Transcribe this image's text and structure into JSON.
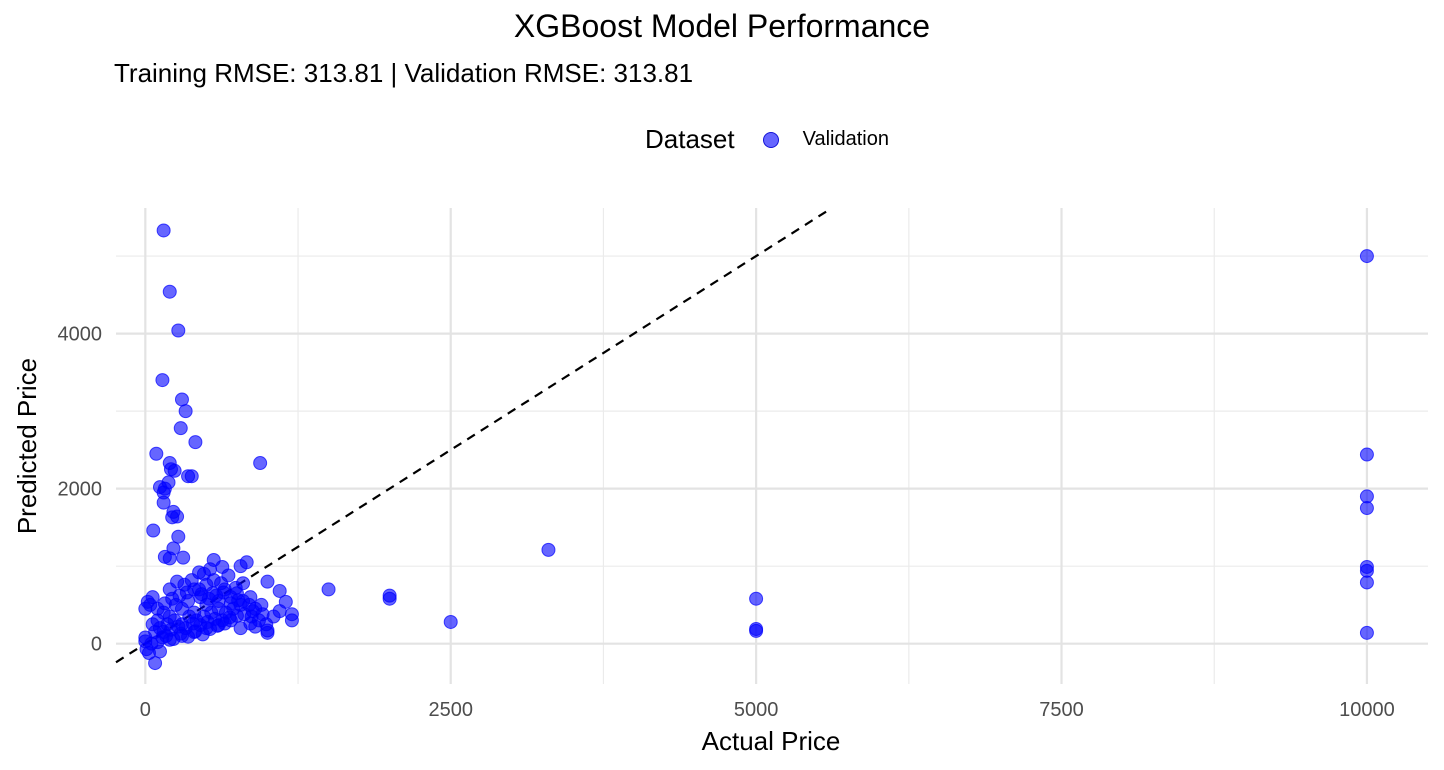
{
  "chart_data": {
    "type": "scatter",
    "title": "XGBoost Model Performance",
    "subtitle": "Training RMSE: 313.81 | Validation RMSE: 313.81",
    "xlabel": "Actual Price",
    "ylabel": "Predicted Price",
    "xlim": [
      -240,
      10500
    ],
    "ylim": [
      -520,
      5620
    ],
    "x_ticks": [
      0,
      2500,
      5000,
      7500,
      10000
    ],
    "x_tick_labels": [
      "0",
      "2500",
      "5000",
      "7500",
      "10000"
    ],
    "y_ticks": [
      0,
      2000,
      4000
    ],
    "y_tick_labels": [
      "0",
      "2000",
      "4000"
    ],
    "grid": true,
    "legend": {
      "title": "Dataset",
      "position": "top"
    },
    "reference_line": {
      "slope": 1,
      "intercept": 0,
      "style": "dashed"
    },
    "series": [
      {
        "name": "Validation",
        "color": "#0000ff",
        "points": [
          [
            150,
            5330
          ],
          [
            200,
            4540
          ],
          [
            270,
            4040
          ],
          [
            140,
            3400
          ],
          [
            300,
            3150
          ],
          [
            330,
            3000
          ],
          [
            290,
            2780
          ],
          [
            410,
            2600
          ],
          [
            90,
            2450
          ],
          [
            350,
            2160
          ],
          [
            380,
            2160
          ],
          [
            940,
            2330
          ],
          [
            200,
            2330
          ],
          [
            210,
            2250
          ],
          [
            240,
            2230
          ],
          [
            120,
            2020
          ],
          [
            160,
            2000
          ],
          [
            150,
            1950
          ],
          [
            190,
            2080
          ],
          [
            150,
            1820
          ],
          [
            220,
            1630
          ],
          [
            260,
            1640
          ],
          [
            230,
            1700
          ],
          [
            65,
            1460
          ],
          [
            270,
            1380
          ],
          [
            230,
            1230
          ],
          [
            310,
            1110
          ],
          [
            160,
            1120
          ],
          [
            200,
            1100
          ],
          [
            560,
            1080
          ],
          [
            830,
            1050
          ],
          [
            780,
            1000
          ],
          [
            630,
            990
          ],
          [
            530,
            960
          ],
          [
            440,
            920
          ],
          [
            480,
            900
          ],
          [
            1100,
            680
          ],
          [
            1000,
            800
          ],
          [
            1500,
            700
          ],
          [
            2000,
            620
          ],
          [
            2000,
            580
          ],
          [
            3300,
            1210
          ],
          [
            2500,
            280
          ],
          [
            1200,
            300
          ],
          [
            1200,
            380
          ],
          [
            1150,
            540
          ],
          [
            1100,
            420
          ],
          [
            1000,
            170
          ],
          [
            1000,
            140
          ],
          [
            900,
            220
          ],
          [
            860,
            260
          ],
          [
            780,
            200
          ],
          [
            700,
            300
          ],
          [
            600,
            240
          ],
          [
            500,
            200
          ],
          [
            400,
            150
          ],
          [
            300,
            100
          ],
          [
            200,
            50
          ],
          [
            100,
            20
          ],
          [
            50,
            0
          ],
          [
            0,
            30
          ],
          [
            0,
            80
          ],
          [
            10,
            -70
          ],
          [
            30,
            -120
          ],
          [
            80,
            -250
          ],
          [
            120,
            -100
          ],
          [
            40,
            500
          ],
          [
            60,
            600
          ],
          [
            20,
            540
          ],
          [
            0,
            450
          ],
          [
            100,
            300
          ],
          [
            150,
            400
          ],
          [
            200,
            350
          ],
          [
            250,
            500
          ],
          [
            300,
            450
          ],
          [
            350,
            550
          ],
          [
            400,
            400
          ],
          [
            450,
            600
          ],
          [
            500,
            500
          ],
          [
            550,
            650
          ],
          [
            600,
            550
          ],
          [
            650,
            700
          ],
          [
            700,
            600
          ],
          [
            750,
            650
          ],
          [
            800,
            550
          ],
          [
            850,
            500
          ],
          [
            900,
            450
          ],
          [
            950,
            500
          ],
          [
            120,
            200
          ],
          [
            180,
            250
          ],
          [
            240,
            300
          ],
          [
            300,
            250
          ],
          [
            360,
            350
          ],
          [
            420,
            300
          ],
          [
            480,
            350
          ],
          [
            540,
            400
          ],
          [
            600,
            450
          ],
          [
            660,
            400
          ],
          [
            720,
            450
          ],
          [
            780,
            500
          ],
          [
            200,
            700
          ],
          [
            260,
            800
          ],
          [
            320,
            760
          ],
          [
            380,
            820
          ],
          [
            440,
            700
          ],
          [
            500,
            760
          ],
          [
            560,
            820
          ],
          [
            620,
            780
          ],
          [
            680,
            880
          ],
          [
            740,
            720
          ],
          [
            800,
            780
          ],
          [
            860,
            600
          ],
          [
            150,
            150
          ],
          [
            210,
            180
          ],
          [
            270,
            220
          ],
          [
            330,
            200
          ],
          [
            390,
            260
          ],
          [
            450,
            240
          ],
          [
            510,
            280
          ],
          [
            570,
            320
          ],
          [
            630,
            300
          ],
          [
            690,
            340
          ],
          [
            750,
            360
          ],
          [
            810,
            380
          ],
          [
            100,
            450
          ],
          [
            160,
            520
          ],
          [
            220,
            580
          ],
          [
            280,
            620
          ],
          [
            340,
            660
          ],
          [
            400,
            700
          ],
          [
            460,
            640
          ],
          [
            520,
            580
          ],
          [
            580,
            620
          ],
          [
            640,
            660
          ],
          [
            700,
            520
          ],
          [
            760,
            560
          ],
          [
            870,
            350
          ],
          [
            930,
            300
          ],
          [
            990,
            250
          ],
          [
            1050,
            350
          ],
          [
            960,
            380
          ],
          [
            880,
            420
          ],
          [
            60,
            250
          ],
          [
            80,
            150
          ],
          [
            140,
            80
          ],
          [
            170,
            100
          ],
          [
            230,
            60
          ],
          [
            290,
            130
          ],
          [
            350,
            90
          ],
          [
            410,
            160
          ],
          [
            470,
            120
          ],
          [
            530,
            190
          ],
          [
            590,
            230
          ],
          [
            650,
            260
          ],
          [
            5000,
            580
          ],
          [
            5000,
            190
          ],
          [
            5000,
            165
          ],
          [
            10000,
            5000
          ],
          [
            10000,
            2440
          ],
          [
            10000,
            1900
          ],
          [
            10000,
            1750
          ],
          [
            10000,
            990
          ],
          [
            10000,
            940
          ],
          [
            10000,
            790
          ],
          [
            10000,
            140
          ]
        ]
      }
    ]
  }
}
